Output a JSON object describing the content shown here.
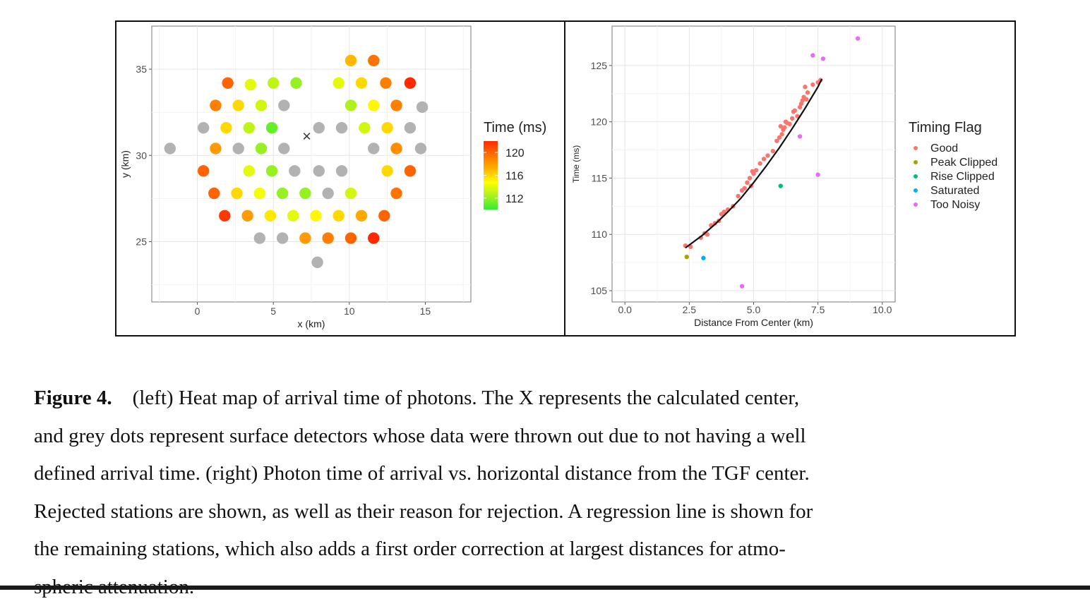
{
  "colors": {
    "gradient": [
      "#33ee33",
      "#aaf020",
      "#ffff00",
      "#ffb000",
      "#ff7000",
      "#ff2a00"
    ],
    "grey": "#b2b2b2",
    "flag_colors": {
      "Good": "#f8766d",
      "Peak Clipped": "#a3a500",
      "Rise Clipped": "#00bf7d",
      "Saturated": "#00b0f6",
      "Too Noisy": "#e76bf3"
    }
  },
  "caption": {
    "label": "Figure 4.",
    "lines": [
      "(left) Heat map of arrival time of photons. The X represents the calculated center,",
      "and grey dots represent surface detectors whose data were thrown out due to not having a well",
      "defined arrival time. (right) Photon time of arrival vs. horizontal distance from the TGF center.",
      "Rejected stations are shown, as well as their reason for rejection. A regression line is shown for",
      "the remaining stations, which also adds a first order correction at largest distances for atmo-",
      "spheric attenuation."
    ]
  },
  "chart_data": [
    {
      "type": "scatter",
      "title": "",
      "xlabel": "x (km)",
      "ylabel": "y (km)",
      "xlim": [
        -3,
        18
      ],
      "ylim": [
        21.5,
        37.5
      ],
      "xticks": [
        0,
        5,
        10,
        15
      ],
      "yticks": [
        25,
        30,
        35
      ],
      "grid": true,
      "legend_title": "Time (ms)",
      "colorbar": {
        "min": 110,
        "max": 122,
        "ticks": [
          112,
          116,
          120
        ]
      },
      "center_marker": {
        "label": "×",
        "x": 7.2,
        "y": 31.1
      },
      "points": [
        {
          "x": 10.1,
          "y": 35.5,
          "t": 117
        },
        {
          "x": 11.6,
          "y": 35.5,
          "t": 119.5
        },
        {
          "x": 2.0,
          "y": 34.2,
          "t": 120
        },
        {
          "x": 3.5,
          "y": 34.1,
          "t": 114
        },
        {
          "x": 5.0,
          "y": 34.2,
          "t": 113
        },
        {
          "x": 6.5,
          "y": 34.2,
          "t": 112
        },
        {
          "x": 9.3,
          "y": 34.2,
          "t": 114
        },
        {
          "x": 10.8,
          "y": 34.2,
          "t": 116
        },
        {
          "x": 12.4,
          "y": 34.2,
          "t": 119
        },
        {
          "x": 14.0,
          "y": 34.2,
          "t": 122
        },
        {
          "x": 1.2,
          "y": 32.9,
          "t": 119
        },
        {
          "x": 2.7,
          "y": 32.9,
          "t": 116
        },
        {
          "x": 4.2,
          "y": 32.9,
          "t": 113.5
        },
        {
          "x": 5.7,
          "y": 32.9,
          "t": null
        },
        {
          "x": 10.1,
          "y": 32.9,
          "t": 112.5
        },
        {
          "x": 11.6,
          "y": 32.9,
          "t": 115
        },
        {
          "x": 13.1,
          "y": 32.9,
          "t": 119
        },
        {
          "x": 14.8,
          "y": 32.8,
          "t": null
        },
        {
          "x": 0.4,
          "y": 31.6,
          "t": null
        },
        {
          "x": 1.9,
          "y": 31.6,
          "t": 116
        },
        {
          "x": 3.4,
          "y": 31.6,
          "t": 113
        },
        {
          "x": 4.9,
          "y": 31.6,
          "t": 111
        },
        {
          "x": 8.0,
          "y": 31.6,
          "t": null
        },
        {
          "x": 9.5,
          "y": 31.6,
          "t": null
        },
        {
          "x": 11.0,
          "y": 31.6,
          "t": 113.5
        },
        {
          "x": 12.5,
          "y": 31.6,
          "t": 116
        },
        {
          "x": 14.0,
          "y": 31.6,
          "t": null
        },
        {
          "x": -1.8,
          "y": 30.4,
          "t": null
        },
        {
          "x": 1.2,
          "y": 30.4,
          "t": 118
        },
        {
          "x": 2.7,
          "y": 30.4,
          "t": null
        },
        {
          "x": 4.2,
          "y": 30.4,
          "t": 112
        },
        {
          "x": 5.7,
          "y": 30.4,
          "t": null
        },
        {
          "x": 11.6,
          "y": 30.4,
          "t": null
        },
        {
          "x": 13.1,
          "y": 30.4,
          "t": 118.5
        },
        {
          "x": 14.7,
          "y": 30.4,
          "t": null
        },
        {
          "x": 0.4,
          "y": 29.1,
          "t": 120
        },
        {
          "x": 3.4,
          "y": 29.1,
          "t": 114
        },
        {
          "x": 4.9,
          "y": 29.1,
          "t": 112
        },
        {
          "x": 6.4,
          "y": 29.1,
          "t": null
        },
        {
          "x": 8.0,
          "y": 29.1,
          "t": null
        },
        {
          "x": 9.5,
          "y": 29.1,
          "t": null
        },
        {
          "x": 12.5,
          "y": 29.1,
          "t": 116
        },
        {
          "x": 14.0,
          "y": 29.1,
          "t": 120
        },
        {
          "x": 1.1,
          "y": 27.8,
          "t": 120
        },
        {
          "x": 2.6,
          "y": 27.8,
          "t": 116
        },
        {
          "x": 4.1,
          "y": 27.8,
          "t": 114.5
        },
        {
          "x": 5.6,
          "y": 27.8,
          "t": 112
        },
        {
          "x": 7.1,
          "y": 27.8,
          "t": 112
        },
        {
          "x": 8.6,
          "y": 27.8,
          "t": null
        },
        {
          "x": 10.1,
          "y": 27.8,
          "t": 113.5
        },
        {
          "x": 13.1,
          "y": 27.8,
          "t": 119.5
        },
        {
          "x": 1.8,
          "y": 26.5,
          "t": 121.5
        },
        {
          "x": 3.3,
          "y": 26.5,
          "t": 118
        },
        {
          "x": 4.8,
          "y": 26.5,
          "t": 115.5
        },
        {
          "x": 6.3,
          "y": 26.5,
          "t": 114
        },
        {
          "x": 7.8,
          "y": 26.5,
          "t": 115
        },
        {
          "x": 9.3,
          "y": 26.5,
          "t": 116
        },
        {
          "x": 10.8,
          "y": 26.5,
          "t": 117.5
        },
        {
          "x": 12.3,
          "y": 26.5,
          "t": 120
        },
        {
          "x": 4.1,
          "y": 25.2,
          "t": null
        },
        {
          "x": 5.6,
          "y": 25.2,
          "t": null
        },
        {
          "x": 7.1,
          "y": 25.2,
          "t": 118
        },
        {
          "x": 8.6,
          "y": 25.2,
          "t": 119
        },
        {
          "x": 10.1,
          "y": 25.2,
          "t": 120
        },
        {
          "x": 11.6,
          "y": 25.2,
          "t": 122
        },
        {
          "x": 7.9,
          "y": 23.8,
          "t": null
        }
      ]
    },
    {
      "type": "scatter",
      "title": "",
      "xlabel": "Distance From Center (km)",
      "ylabel": "Time (ms)",
      "xlim": [
        -0.5,
        10.5
      ],
      "ylim": [
        104,
        128.5
      ],
      "xticks": [
        0.0,
        2.5,
        5.0,
        7.5,
        10.0
      ],
      "xtick_labels": [
        "0.0",
        "2.5",
        "5.0",
        "7.5",
        "10.0"
      ],
      "yticks": [
        105,
        110,
        115,
        120,
        125
      ],
      "grid": true,
      "legend_title": "Timing Flag",
      "legend_placement": "right",
      "legend": [
        "Good",
        "Peak Clipped",
        "Rise Clipped",
        "Saturated",
        "Too Noisy"
      ],
      "regression_line": [
        [
          2.35,
          108.8
        ],
        [
          3.0,
          109.9
        ],
        [
          3.5,
          110.9
        ],
        [
          4.0,
          112.0
        ],
        [
          4.5,
          113.2
        ],
        [
          5.0,
          114.6
        ],
        [
          5.5,
          116.1
        ],
        [
          6.0,
          117.7
        ],
        [
          6.5,
          119.4
        ],
        [
          7.0,
          121.2
        ],
        [
          7.5,
          123.1
        ],
        [
          7.65,
          123.8
        ]
      ],
      "series": [
        {
          "name": "Good",
          "points": [
            [
              2.35,
              109.0
            ],
            [
              2.55,
              108.9
            ],
            [
              2.95,
              109.7
            ],
            [
              3.1,
              110.1
            ],
            [
              3.2,
              110.0
            ],
            [
              3.35,
              110.8
            ],
            [
              3.5,
              111.0
            ],
            [
              3.65,
              111.2
            ],
            [
              3.75,
              111.8
            ],
            [
              3.85,
              112.0
            ],
            [
              4.0,
              112.2
            ],
            [
              4.2,
              112.5
            ],
            [
              4.4,
              113.4
            ],
            [
              4.55,
              113.9
            ],
            [
              4.65,
              114.1
            ],
            [
              4.75,
              114.6
            ],
            [
              4.85,
              115.0
            ],
            [
              4.95,
              115.6
            ],
            [
              4.9,
              114.3
            ],
            [
              5.1,
              115.7
            ],
            [
              5.25,
              116.3
            ],
            [
              5.4,
              116.7
            ],
            [
              5.55,
              117.0
            ],
            [
              5.75,
              117.4
            ],
            [
              5.9,
              118.3
            ],
            [
              6.0,
              118.6
            ],
            [
              6.1,
              118.9
            ],
            [
              6.15,
              119.3
            ],
            [
              6.2,
              119.5
            ],
            [
              6.25,
              120.0
            ],
            [
              6.3,
              119.9
            ],
            [
              6.4,
              119.8
            ],
            [
              6.5,
              120.3
            ],
            [
              6.55,
              120.9
            ],
            [
              6.7,
              120.5
            ],
            [
              6.8,
              121.3
            ],
            [
              6.9,
              121.9
            ],
            [
              6.95,
              122.2
            ],
            [
              7.05,
              122.0
            ],
            [
              7.0,
              123.1
            ],
            [
              7.1,
              122.6
            ],
            [
              7.3,
              123.3
            ],
            [
              7.5,
              123.5
            ],
            [
              7.6,
              123.7
            ],
            [
              6.05,
              119.6
            ],
            [
              5.0,
              115.4
            ],
            [
              6.6,
              121.0
            ],
            [
              6.85,
              121.6
            ]
          ]
        },
        {
          "name": "Peak Clipped",
          "points": [
            [
              2.4,
              108.0
            ]
          ]
        },
        {
          "name": "Rise Clipped",
          "points": [
            [
              6.05,
              114.3
            ]
          ]
        },
        {
          "name": "Saturated",
          "points": [
            [
              3.05,
              107.9
            ]
          ]
        },
        {
          "name": "Too Noisy",
          "points": [
            [
              7.3,
              125.9
            ],
            [
              7.7,
              125.6
            ],
            [
              9.05,
              127.4
            ],
            [
              6.8,
              118.7
            ],
            [
              7.5,
              115.3
            ],
            [
              4.55,
              105.4
            ]
          ]
        }
      ]
    }
  ]
}
